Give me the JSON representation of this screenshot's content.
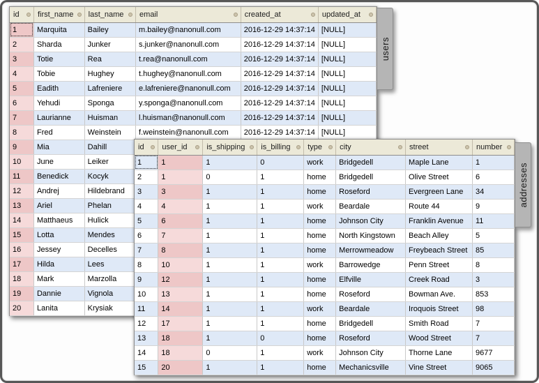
{
  "window": {
    "background": "#ffffff",
    "frame_color": "#575757"
  },
  "colors": {
    "header_bg": "#ece9d8",
    "row_bg": "#ffffff",
    "row_alt_bg": "#dfe9f7",
    "key_col_on_alt": "#eec7c7",
    "key_col_on_white": "#f6dada",
    "tab_bg": "#b5b5b5"
  },
  "users_table": {
    "tab_label": "users",
    "columns": [
      "id",
      "first_name",
      "last_name",
      "email",
      "created_at",
      "updated_at"
    ],
    "key_column_index": 0,
    "rows": [
      [
        "1",
        "Marquita",
        "Bailey",
        "m.bailey@nanonull.com",
        "2016-12-29 14:37:14",
        "[NULL]"
      ],
      [
        "2",
        "Sharda",
        "Junker",
        "s.junker@nanonull.com",
        "2016-12-29 14:37:14",
        "[NULL]"
      ],
      [
        "3",
        "Totie",
        "Rea",
        "t.rea@nanonull.com",
        "2016-12-29 14:37:14",
        "[NULL]"
      ],
      [
        "4",
        "Tobie",
        "Hughey",
        "t.hughey@nanonull.com",
        "2016-12-29 14:37:14",
        "[NULL]"
      ],
      [
        "5",
        "Eadith",
        "Lafreniere",
        "e.lafreniere@nanonull.com",
        "2016-12-29 14:37:14",
        "[NULL]"
      ],
      [
        "6",
        "Yehudi",
        "Sponga",
        "y.sponga@nanonull.com",
        "2016-12-29 14:37:14",
        "[NULL]"
      ],
      [
        "7",
        "Laurianne",
        "Huisman",
        "l.huisman@nanonull.com",
        "2016-12-29 14:37:14",
        "[NULL]"
      ],
      [
        "8",
        "Fred",
        "Weinstein",
        "f.weinstein@nanonull.com",
        "2016-12-29 14:37:14",
        "[NULL]"
      ],
      [
        "9",
        "Mia",
        "Dahill",
        "",
        "",
        ""
      ],
      [
        "10",
        "June",
        "Leiker",
        "",
        "",
        ""
      ],
      [
        "11",
        "Benedick",
        "Kocyk",
        "",
        "",
        ""
      ],
      [
        "12",
        "Andrej",
        "Hildebrand",
        "",
        "",
        ""
      ],
      [
        "13",
        "Ariel",
        "Phelan",
        "",
        "",
        ""
      ],
      [
        "14",
        "Matthaeus",
        "Hulick",
        "",
        "",
        ""
      ],
      [
        "15",
        "Lotta",
        "Mendes",
        "",
        "",
        ""
      ],
      [
        "16",
        "Jessey",
        "Decelles",
        "",
        "",
        ""
      ],
      [
        "17",
        "Hilda",
        "Lees",
        "",
        "",
        ""
      ],
      [
        "18",
        "Mark",
        "Marzolla",
        "",
        "",
        ""
      ],
      [
        "19",
        "Dannie",
        "Vignola",
        "",
        "",
        ""
      ],
      [
        "20",
        "Lanita",
        "Krysiak",
        "",
        "",
        ""
      ]
    ]
  },
  "addresses_table": {
    "tab_label": "addresses",
    "columns": [
      "id",
      "user_id",
      "is_shipping",
      "is_billing",
      "type",
      "city",
      "street",
      "number"
    ],
    "key_column_index": 1,
    "rows": [
      [
        "1",
        "1",
        "1",
        "0",
        "work",
        "Bridgedell",
        "Maple Lane",
        "1"
      ],
      [
        "2",
        "1",
        "0",
        "1",
        "home",
        "Bridgedell",
        "Olive Street",
        "6"
      ],
      [
        "3",
        "3",
        "1",
        "1",
        "home",
        "Roseford",
        "Evergreen Lane",
        "34"
      ],
      [
        "4",
        "4",
        "1",
        "1",
        "work",
        "Beardale",
        "Route 44",
        "9"
      ],
      [
        "5",
        "6",
        "1",
        "1",
        "home",
        "Johnson City",
        "Franklin Avenue",
        "11"
      ],
      [
        "6",
        "7",
        "1",
        "1",
        "home",
        "North Kingstown",
        "Beach Alley",
        "5"
      ],
      [
        "7",
        "8",
        "1",
        "1",
        "home",
        "Merrowmeadow",
        "Freybeach Street",
        "85"
      ],
      [
        "8",
        "10",
        "1",
        "1",
        "work",
        "Barrowedge",
        "Penn Street",
        "8"
      ],
      [
        "9",
        "12",
        "1",
        "1",
        "home",
        "Elfville",
        "Creek Road",
        "3"
      ],
      [
        "10",
        "13",
        "1",
        "1",
        "home",
        "Roseford",
        "Bowman Ave.",
        "853"
      ],
      [
        "11",
        "14",
        "1",
        "1",
        "work",
        "Beardale",
        "Iroquois Street",
        "98"
      ],
      [
        "12",
        "17",
        "1",
        "1",
        "home",
        "Bridgedell",
        "Smith Road",
        "7"
      ],
      [
        "13",
        "18",
        "1",
        "0",
        "home",
        "Roseford",
        "Wood Street",
        "7"
      ],
      [
        "14",
        "18",
        "0",
        "1",
        "work",
        "Johnson City",
        "Thorne Lane",
        "9677"
      ],
      [
        "15",
        "20",
        "1",
        "1",
        "home",
        "Mechanicsville",
        "Vine Street",
        "9065"
      ]
    ]
  }
}
